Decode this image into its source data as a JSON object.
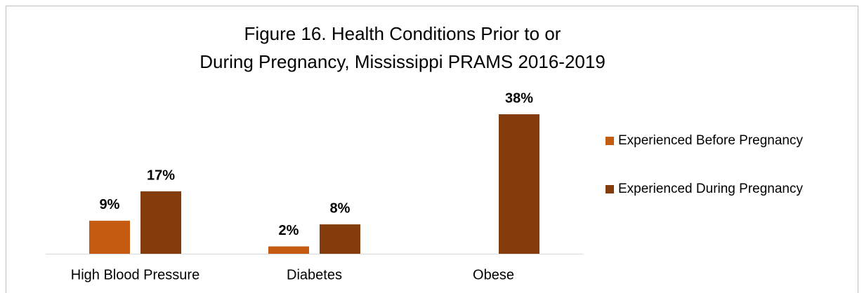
{
  "chart_data": {
    "type": "bar",
    "title": [
      "Figure 16. Health Conditions Prior to or",
      "During Pregnancy, Mississippi PRAMS 2016-2019"
    ],
    "categories": [
      "High Blood Pressure",
      "Diabetes",
      "Obese"
    ],
    "series": [
      {
        "name": "Experienced Before Pregnancy",
        "color": "#c55a11",
        "values": [
          9,
          2,
          null
        ],
        "value_labels": [
          "9%",
          "2%",
          null
        ]
      },
      {
        "name": "Experienced During Pregnancy",
        "color": "#843c0c",
        "values": [
          17,
          8,
          38
        ],
        "value_labels": [
          "17%",
          "8%",
          "38%"
        ]
      }
    ],
    "legend": "right"
  }
}
